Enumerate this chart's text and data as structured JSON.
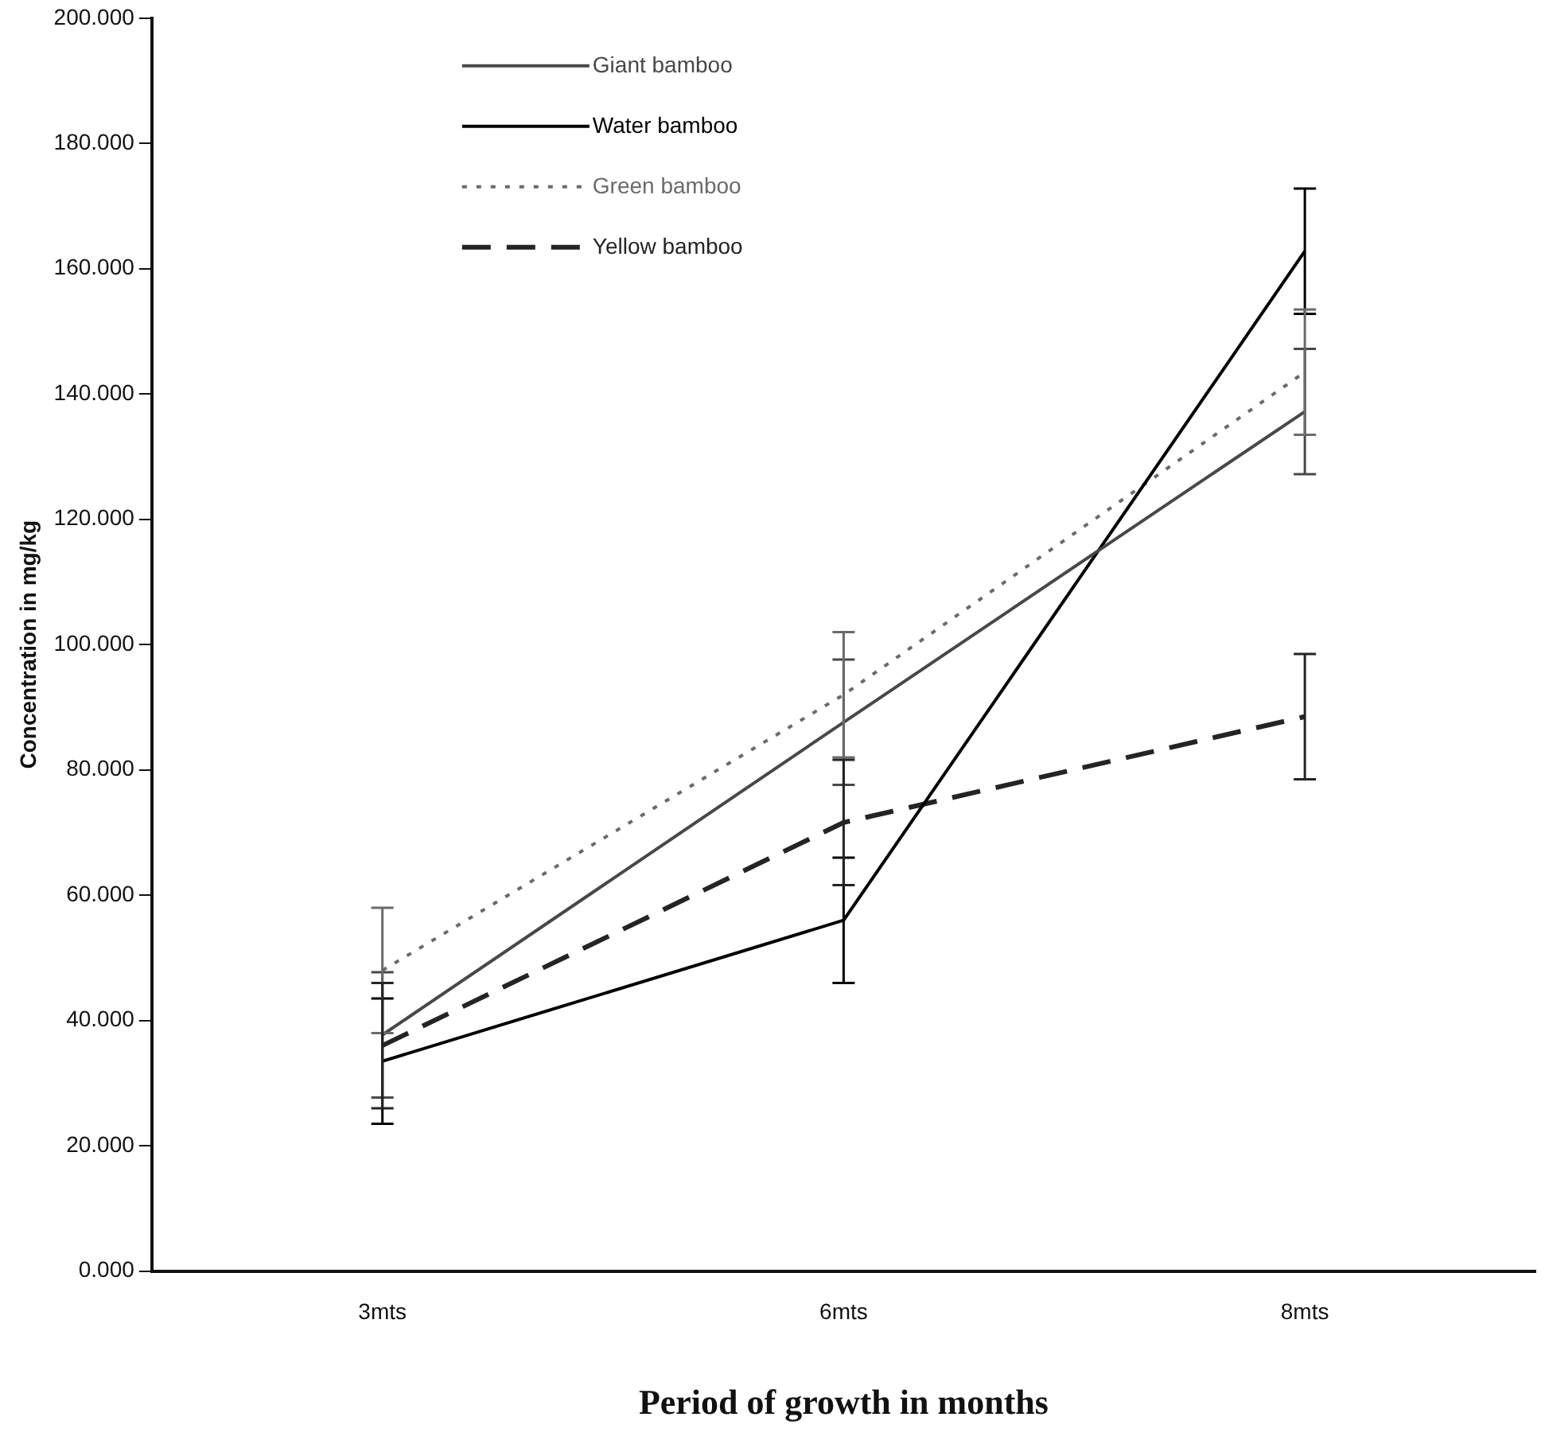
{
  "chart_data": {
    "type": "line",
    "xlabel": "Period of growth in months",
    "ylabel": "Concentration in mg/kg",
    "categories": [
      "3mts",
      "6mts",
      "8mts"
    ],
    "series": [
      {
        "name": "Giant bamboo",
        "color": "#484848",
        "line_style": "solid",
        "values": [
          37.7,
          87.6,
          137.2
        ],
        "errors": [
          10,
          10,
          10
        ]
      },
      {
        "name": "Water bamboo",
        "color": "#000000",
        "line_style": "solid",
        "values": [
          33.5,
          56,
          162.8
        ],
        "errors": [
          10,
          10,
          10
        ]
      },
      {
        "name": "Green bamboo",
        "color": "#6a6a6a",
        "line_style": "dotted",
        "values": [
          48,
          92,
          143.5
        ],
        "errors": [
          10,
          10,
          10
        ]
      },
      {
        "name": "Yellow bamboo",
        "color": "#242424",
        "line_style": "dashed",
        "values": [
          36,
          71.6,
          88.5
        ],
        "errors": [
          10,
          10,
          10
        ]
      }
    ],
    "ylim": [
      0,
      200
    ],
    "yticks": [
      {
        "value": 0,
        "label": "0.000"
      },
      {
        "value": 20,
        "label": "20.000"
      },
      {
        "value": 40,
        "label": "40.000"
      },
      {
        "value": 60,
        "label": "60.000"
      },
      {
        "value": 80,
        "label": "80.000"
      },
      {
        "value": 100,
        "label": "100.000"
      },
      {
        "value": 120,
        "label": "120.000"
      },
      {
        "value": 140,
        "label": "140.000"
      },
      {
        "value": 160,
        "label": "160.000"
      },
      {
        "value": 180,
        "label": "180.000"
      },
      {
        "value": 200,
        "label": "200.000"
      }
    ],
    "grid": false,
    "legend": "top left",
    "marker": "none"
  }
}
